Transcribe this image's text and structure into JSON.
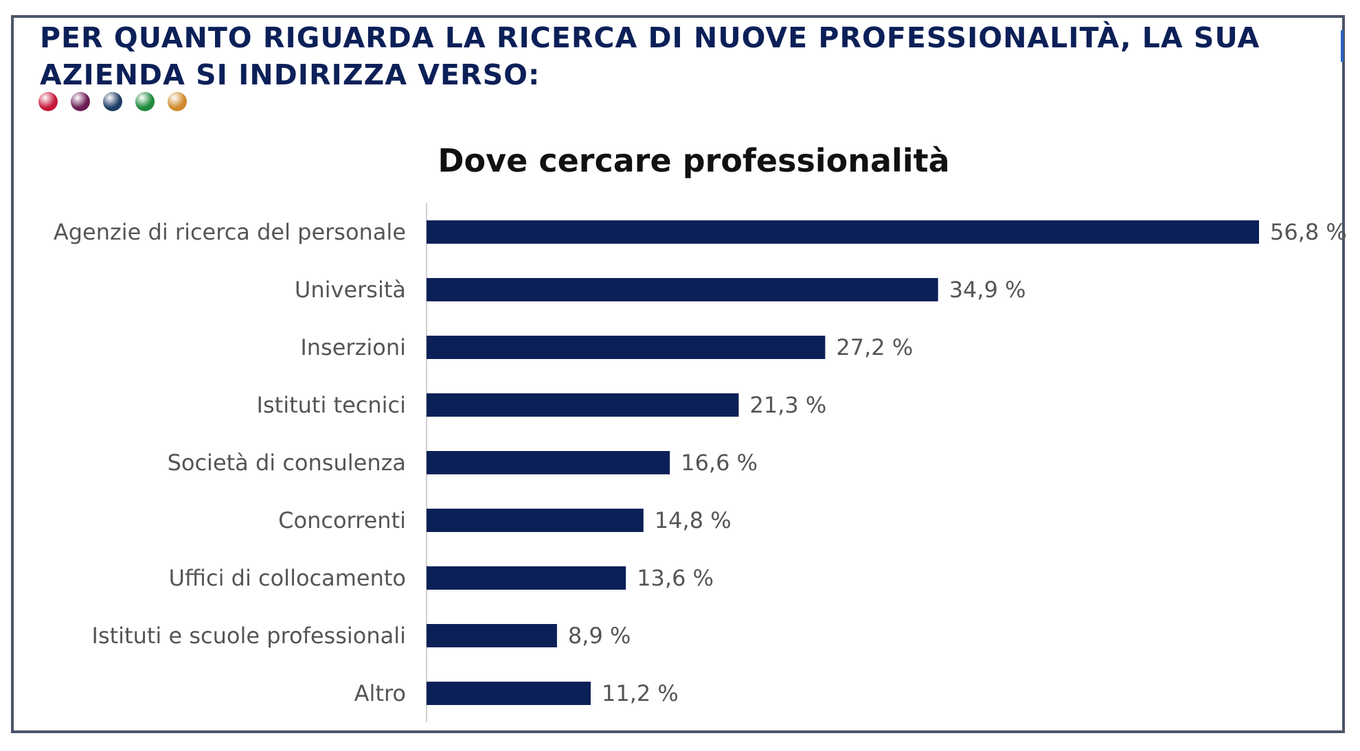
{
  "header": {
    "title": "PER QUANTO RIGUARDA LA RICERCA DI NUOVE PROFESSIONALITÀ, LA SUA AZIENDA SI INDIRIZZA VERSO:",
    "dot_colors": [
      "#c8183a",
      "#6b1d55",
      "#1f3e66",
      "#1e8a3c",
      "#d08a2c"
    ]
  },
  "chart_data": {
    "type": "bar",
    "orientation": "horizontal",
    "title": "Dove cercare professionalità",
    "categories": [
      "Agenzie di ricerca del personale",
      "Università",
      "Inserzioni",
      "Istituti tecnici",
      "Società di consulenza",
      "Concorrenti",
      "Uffici di collocamento",
      "Istituti e scuole professionali",
      "Altro"
    ],
    "values": [
      56.8,
      34.9,
      27.2,
      21.3,
      16.6,
      14.8,
      13.6,
      8.9,
      11.2
    ],
    "value_labels": [
      "56,8 %",
      "34,9 %",
      "27,2 %",
      "21,3 %",
      "16,6 %",
      "14,8 %",
      "13,6 %",
      "8,9 %",
      "11,2 %"
    ],
    "xlim": [
      0,
      56.8
    ],
    "grid": false,
    "bar_color": "#0c2058"
  }
}
